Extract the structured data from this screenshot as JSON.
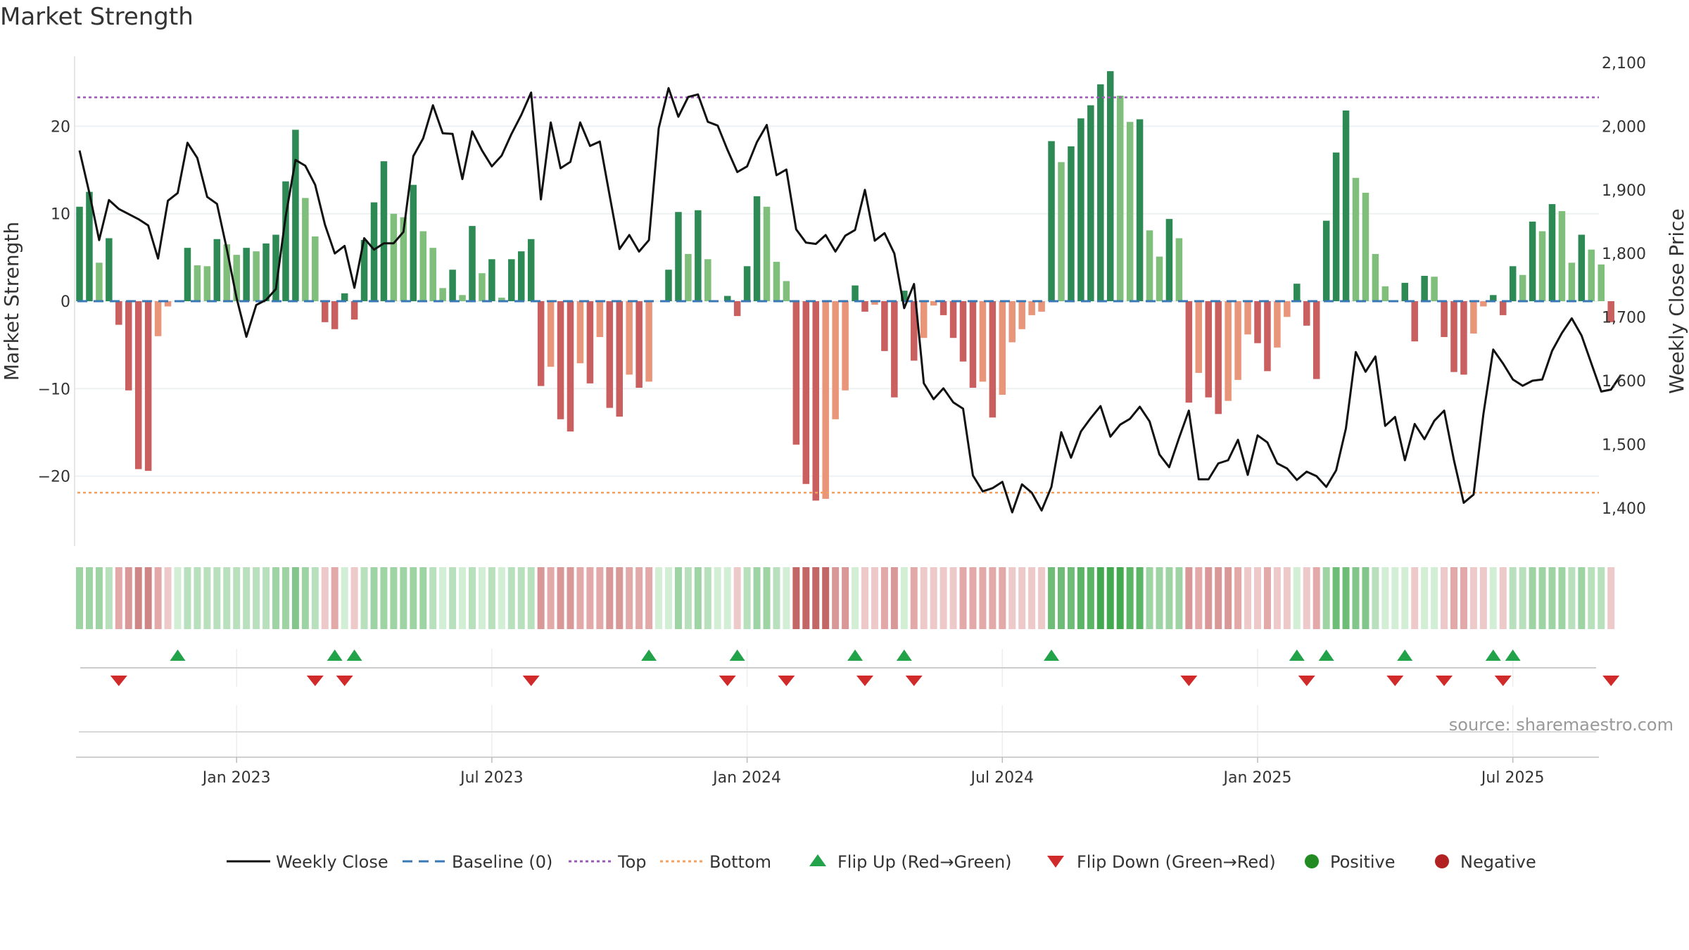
{
  "title": "Market Strength",
  "source": "source: sharemaestro.com",
  "chart_data": {
    "type": "bar",
    "title": "Market Strength",
    "ylabel_left": "Market Strength",
    "ylabel_right": "Weekly Close Price",
    "ylim_left": [
      -28,
      28
    ],
    "ylim_right": [
      1340,
      2110
    ],
    "yticks_left": [
      {
        "value": 20,
        "label": "20"
      },
      {
        "value": 10,
        "label": "10"
      },
      {
        "value": 0,
        "label": "0"
      },
      {
        "value": -10,
        "label": "−10"
      },
      {
        "value": -20,
        "label": "−20"
      }
    ],
    "yticks_right": [
      {
        "value": 2100,
        "label": "2,100"
      },
      {
        "value": 2000,
        "label": "2,000"
      },
      {
        "value": 1900,
        "label": "1,900"
      },
      {
        "value": 1800,
        "label": "1,800"
      },
      {
        "value": 1700,
        "label": "1,700"
      },
      {
        "value": 1600,
        "label": "1,600"
      },
      {
        "value": 1500,
        "label": "1,500"
      },
      {
        "value": 1400,
        "label": "1,400"
      }
    ],
    "xticks": [
      {
        "week": 16,
        "label": "Jan 2023"
      },
      {
        "week": 42,
        "label": "Jul 2023"
      },
      {
        "week": 68,
        "label": "Jan 2024"
      },
      {
        "week": 94,
        "label": "Jul 2024"
      },
      {
        "week": 120,
        "label": "Jan 2025"
      },
      {
        "week": 146,
        "label": "Jul 2025"
      }
    ],
    "top_line": 23.3,
    "bottom_line": -21.9,
    "strength": [
      10.8,
      12.5,
      4.4,
      7.2,
      -2.7,
      -10.2,
      -19.2,
      -19.4,
      -4.0,
      -0.6,
      0.0,
      6.1,
      4.1,
      4.0,
      7.1,
      6.5,
      5.3,
      6.1,
      5.7,
      6.6,
      7.6,
      13.7,
      19.6,
      11.8,
      7.4,
      -2.4,
      -3.2,
      0.9,
      -2.1,
      7.0,
      11.3,
      16.0,
      10.0,
      9.6,
      13.3,
      8.0,
      6.1,
      1.5,
      3.6,
      0.7,
      8.6,
      3.2,
      4.8,
      0.4,
      4.8,
      5.7,
      7.1,
      -9.7,
      -7.5,
      -13.5,
      -14.9,
      -7.1,
      -9.4,
      -4.1,
      -12.2,
      -13.2,
      -8.4,
      -9.9,
      -9.2,
      0.0,
      3.6,
      10.2,
      5.4,
      10.4,
      4.8,
      0.0,
      0.6,
      -1.7,
      4.0,
      12.0,
      10.8,
      4.5,
      2.3,
      -16.4,
      -20.9,
      -22.8,
      -22.6,
      -13.5,
      -10.2,
      1.8,
      -1.2,
      -0.4,
      -5.7,
      -11.0,
      1.2,
      -6.8,
      -4.2,
      -0.5,
      -1.6,
      -4.2,
      -6.9,
      -9.9,
      -9.2,
      -13.3,
      -10.7,
      -4.7,
      -3.2,
      -1.6,
      -1.2,
      18.3,
      15.9,
      17.7,
      20.9,
      22.4,
      24.8,
      26.3,
      23.5,
      20.5,
      20.8,
      8.1,
      5.1,
      9.4,
      7.2,
      -11.6,
      -8.2,
      -11.0,
      -12.9,
      -11.4,
      -9.0,
      -3.8,
      -4.8,
      -8.0,
      -5.3,
      -1.8,
      2.0,
      -2.8,
      -8.9,
      9.2,
      17.0,
      21.8,
      14.1,
      12.4,
      5.4,
      1.7,
      0.0,
      2.1,
      -4.6,
      2.9,
      2.8,
      -4.1,
      -8.1,
      -8.4,
      -3.7,
      -0.6,
      0.7,
      -1.6,
      4.0,
      3.0,
      9.1,
      8.0,
      11.1,
      10.3,
      4.4,
      7.6,
      5.9,
      4.2,
      -2.4
    ],
    "price": [
      1962,
      1895,
      1821,
      1884,
      1870,
      1862,
      1854,
      1844,
      1792,
      1883,
      1895,
      1974,
      1950,
      1889,
      1878,
      1807,
      1730,
      1669,
      1719,
      1727,
      1744,
      1858,
      1947,
      1938,
      1908,
      1845,
      1800,
      1812,
      1746,
      1824,
      1806,
      1816,
      1816,
      1834,
      1953,
      1981,
      2033,
      1989,
      1988,
      1917,
      1992,
      1962,
      1937,
      1954,
      1988,
      2018,
      2053,
      1885,
      2006,
      1934,
      1944,
      2006,
      1969,
      1976,
      1891,
      1807,
      1829,
      1803,
      1821,
      1997,
      2060,
      2015,
      2046,
      2050,
      2007,
      2001,
      1963,
      1928,
      1937,
      1975,
      2002,
      1923,
      1932,
      1838,
      1817,
      1815,
      1829,
      1803,
      1828,
      1837,
      1900,
      1820,
      1832,
      1800,
      1714,
      1752,
      1596,
      1571,
      1588,
      1566,
      1556,
      1451,
      1426,
      1431,
      1441,
      1393,
      1437,
      1424,
      1396,
      1433,
      1519,
      1479,
      1520,
      1541,
      1560,
      1512,
      1531,
      1540,
      1559,
      1536,
      1484,
      1464,
      1510,
      1553,
      1445,
      1445,
      1470,
      1475,
      1507,
      1452,
      1514,
      1503,
      1470,
      1462,
      1444,
      1457,
      1450,
      1433,
      1459,
      1525,
      1645,
      1614,
      1638,
      1529,
      1543,
      1475,
      1532,
      1508,
      1537,
      1553,
      1475,
      1408,
      1421,
      1547,
      1649,
      1627,
      1602,
      1592,
      1600,
      1602,
      1647,
      1675,
      1698,
      1671,
      1627,
      1583,
      1586,
      1609
    ],
    "strip_colors": [
      "#9ed4a4",
      "#9ed4a4",
      "#9ed4a4",
      "#b9e0bd",
      "#e3a8a8",
      "#d99898",
      "#ce8585",
      "#ce8585",
      "#e3a8a8",
      "#eec9c9",
      "#d2eed5",
      "#b9e0bd",
      "#b9e0bd",
      "#b9e0bd",
      "#b9e0bd",
      "#b9e0bd",
      "#b9e0bd",
      "#b9e0bd",
      "#b9e0bd",
      "#b9e0bd",
      "#9ed4a4",
      "#9ed4a4",
      "#82c68b",
      "#9ed4a4",
      "#b9e0bd",
      "#eec9c9",
      "#e3a8a8",
      "#d2eed5",
      "#eec9c9",
      "#b9e0bd",
      "#9ed4a4",
      "#9ed4a4",
      "#9ed4a4",
      "#9ed4a4",
      "#9ed4a4",
      "#9ed4a4",
      "#b9e0bd",
      "#d2eed5",
      "#b9e0bd",
      "#d2eed5",
      "#b9e0bd",
      "#d2eed5",
      "#b9e0bd",
      "#d2eed5",
      "#b9e0bd",
      "#b9e0bd",
      "#b9e0bd",
      "#d99898",
      "#e3a8a8",
      "#d99898",
      "#d99898",
      "#e3a8a8",
      "#e3a8a8",
      "#e3a8a8",
      "#d99898",
      "#d99898",
      "#e3a8a8",
      "#e3a8a8",
      "#e3a8a8",
      "#d2eed5",
      "#d2eed5",
      "#9ed4a4",
      "#b9e0bd",
      "#9ed4a4",
      "#b9e0bd",
      "#d2eed5",
      "#d2eed5",
      "#eec9c9",
      "#b9e0bd",
      "#9ed4a4",
      "#9ed4a4",
      "#b9e0bd",
      "#d2eed5",
      "#c26666",
      "#c26666",
      "#c26666",
      "#c26666",
      "#d99898",
      "#d99898",
      "#d2eed5",
      "#eec9c9",
      "#eec9c9",
      "#e3a8a8",
      "#d99898",
      "#d2eed5",
      "#e3a8a8",
      "#eec9c9",
      "#eec9c9",
      "#eec9c9",
      "#eec9c9",
      "#e3a8a8",
      "#e3a8a8",
      "#e3a8a8",
      "#e3a8a8",
      "#e3a8a8",
      "#eec9c9",
      "#eec9c9",
      "#eec9c9",
      "#eec9c9",
      "#6dbd77",
      "#6dbd77",
      "#6dbd77",
      "#5ab565",
      "#5ab565",
      "#43a94f",
      "#43a94f",
      "#43a94f",
      "#5ab565",
      "#5ab565",
      "#9ed4a4",
      "#9ed4a4",
      "#9ed4a4",
      "#9ed4a4",
      "#d99898",
      "#e3a8a8",
      "#d99898",
      "#d99898",
      "#d99898",
      "#e3a8a8",
      "#eec9c9",
      "#eec9c9",
      "#e3a8a8",
      "#eec9c9",
      "#eec9c9",
      "#d2eed5",
      "#eec9c9",
      "#e3a8a8",
      "#9ed4a4",
      "#6dbd77",
      "#6dbd77",
      "#82c68b",
      "#82c68b",
      "#b9e0bd",
      "#d2eed5",
      "#d2eed5",
      "#d2eed5",
      "#eec9c9",
      "#d2eed5",
      "#d2eed5",
      "#eec9c9",
      "#e3a8a8",
      "#e3a8a8",
      "#eec9c9",
      "#eec9c9",
      "#d2eed5",
      "#eec9c9",
      "#b9e0bd",
      "#b9e0bd",
      "#9ed4a4",
      "#9ed4a4",
      "#9ed4a4",
      "#9ed4a4",
      "#b9e0bd",
      "#9ed4a4",
      "#b9e0bd",
      "#b9e0bd",
      "#eec9c9"
    ],
    "flip_up_weeks": [
      10,
      26,
      28,
      58,
      67,
      79,
      84,
      99,
      124,
      127,
      135,
      144,
      146
    ],
    "flip_down_weeks": [
      4,
      24,
      27,
      46,
      66,
      72,
      80,
      85,
      113,
      125,
      134,
      139,
      145,
      156
    ],
    "colors": {
      "pos_strong": "#2e8a54",
      "pos_weak": "#7fbf7b",
      "neg_strong": "#c95f5f",
      "neg_weak": "#e8957a",
      "price_line": "#111111",
      "baseline": "#3a78b5",
      "top": "#9b59b6",
      "bottom": "#f0a060",
      "flip_up": "#22a34a",
      "flip_down": "#d12a2a",
      "positive": "#228b22",
      "negative": "#b22222"
    },
    "legend": [
      {
        "label": "Weekly Close",
        "kind": "solid-line"
      },
      {
        "label": "Baseline (0)",
        "kind": "dash-line"
      },
      {
        "label": "Top",
        "kind": "dot-line-top"
      },
      {
        "label": "Bottom",
        "kind": "dot-line-bottom"
      },
      {
        "label": "Flip Up (Red→Green)",
        "kind": "tri-up"
      },
      {
        "label": "Flip Down (Green→Red)",
        "kind": "tri-down"
      },
      {
        "label": "Positive",
        "kind": "dot-pos"
      },
      {
        "label": "Negative",
        "kind": "dot-neg"
      }
    ]
  }
}
